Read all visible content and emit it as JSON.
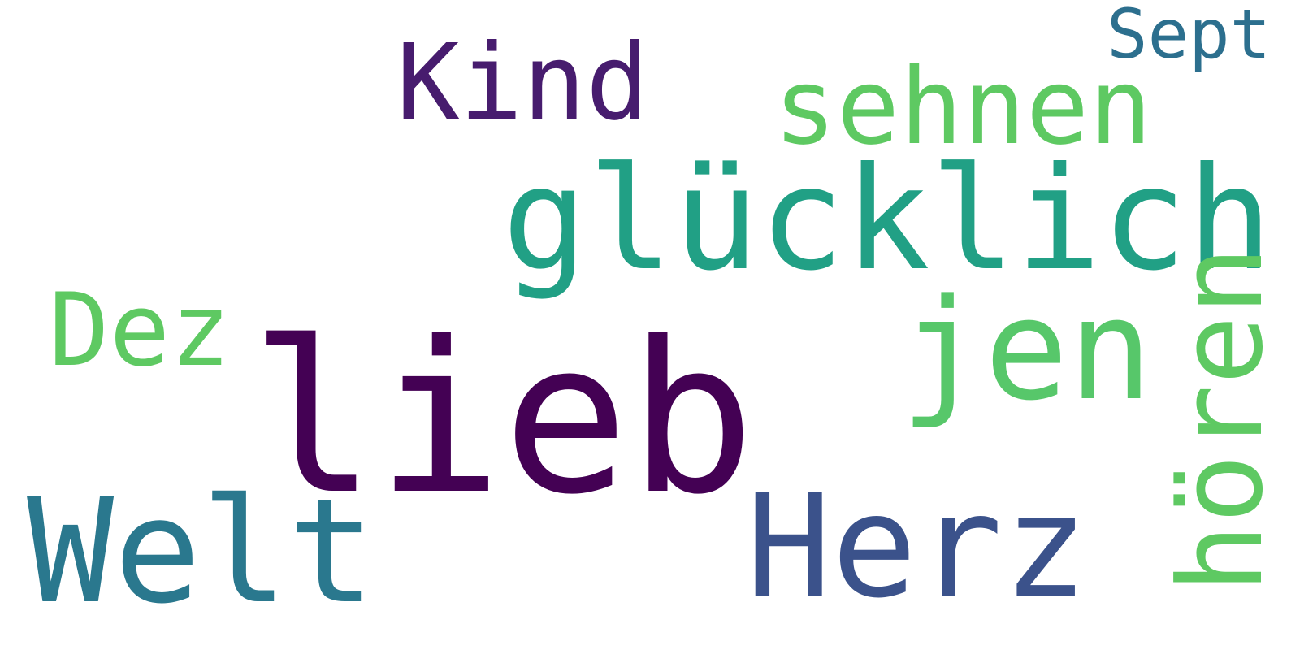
{
  "words": [
    {
      "text": "lieb",
      "color": "#440154"
    },
    {
      "text": "glücklich",
      "color": "#21a085"
    },
    {
      "text": "jen",
      "color": "#57c76a"
    },
    {
      "text": "Herz",
      "color": "#3b528b"
    },
    {
      "text": "Welt",
      "color": "#2a788e"
    },
    {
      "text": "Kind",
      "color": "#471c6e"
    },
    {
      "text": "sehnen",
      "color": "#5ec962"
    },
    {
      "text": "Dez",
      "color": "#5ec962"
    },
    {
      "text": "Sept",
      "color": "#2c6f8e"
    },
    {
      "text": "hören",
      "color": "#5ec962"
    }
  ]
}
